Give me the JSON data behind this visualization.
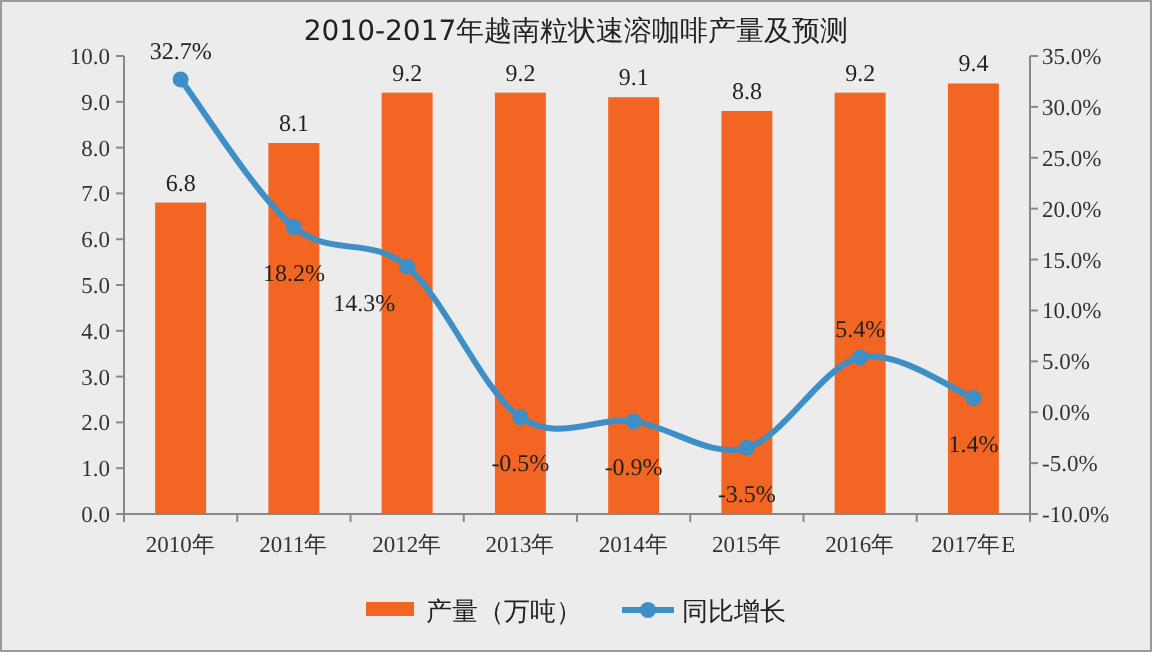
{
  "chart_data": {
    "type": "bar",
    "title": "2010-2017年越南粒状速溶咖啡产量及预测",
    "categories": [
      "2010年",
      "2011年",
      "2012年",
      "2013年",
      "2014年",
      "2015年",
      "2016年",
      "2017年E"
    ],
    "series": [
      {
        "name": "产量（万吨）",
        "color": "#f26522",
        "values": [
          6.8,
          8.1,
          9.2,
          9.2,
          9.1,
          8.8,
          9.2,
          9.4
        ],
        "value_labels": [
          "6.8",
          "8.1",
          "9.2",
          "9.2",
          "9.1",
          "8.8",
          "9.2",
          "9.4"
        ]
      },
      {
        "name": "同比增长",
        "type": "line",
        "axis": "y2",
        "color": "#3d8fc6",
        "marker": "circle",
        "values": [
          32.7,
          18.2,
          14.3,
          -0.5,
          -0.9,
          -3.5,
          5.4,
          1.4
        ],
        "value_labels": [
          "32.7%",
          "18.2%",
          "14.3%",
          "-0.5%",
          "-0.9%",
          "-3.5%",
          "5.4%",
          "1.4%"
        ]
      }
    ],
    "ylim": [
      0,
      10
    ],
    "yticks": [
      {
        "value": 0,
        "label": "0.0"
      },
      {
        "value": 1,
        "label": "1.0"
      },
      {
        "value": 2,
        "label": "2.0"
      },
      {
        "value": 3,
        "label": "3.0"
      },
      {
        "value": 4,
        "label": "4.0"
      },
      {
        "value": 5,
        "label": "5.0"
      },
      {
        "value": 6,
        "label": "6.0"
      },
      {
        "value": 7,
        "label": "7.0"
      },
      {
        "value": 8,
        "label": "8.0"
      },
      {
        "value": 9,
        "label": "9.0"
      },
      {
        "value": 10,
        "label": "10.0"
      }
    ],
    "y2lim": [
      -10,
      35
    ],
    "y2ticks": [
      {
        "value": -10,
        "label": "-10.0%"
      },
      {
        "value": -5,
        "label": "-5.0%"
      },
      {
        "value": 0,
        "label": "0.0%"
      },
      {
        "value": 5,
        "label": "5.0%"
      },
      {
        "value": 10,
        "label": "10.0%"
      },
      {
        "value": 15,
        "label": "15.0%"
      },
      {
        "value": 20,
        "label": "20.0%"
      },
      {
        "value": 25,
        "label": "25.0%"
      },
      {
        "value": 30,
        "label": "30.0%"
      },
      {
        "value": 35,
        "label": "35.0%"
      }
    ],
    "legend": "bottom"
  }
}
